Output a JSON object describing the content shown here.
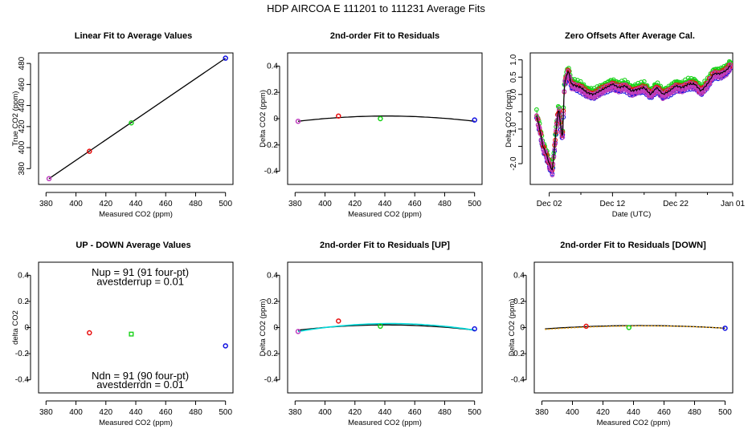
{
  "suptitle": "HDP   AIRCOA E   111201 to 111231   Average Fits",
  "colors": {
    "red": "#e81010",
    "green": "#18d218",
    "blue": "#1010e0",
    "magenta": "#c040c0",
    "cyan": "#00d8d8",
    "orange": "#f0a000",
    "black": "#000000"
  },
  "chart_data": [
    {
      "id": "p1",
      "type": "scatter",
      "title": "Linear Fit to Average Values",
      "xlabel": "Measured CO2 (ppm)",
      "ylabel": "True CO2 (ppm)",
      "xlim": [
        375,
        505
      ],
      "ylim": [
        365,
        490
      ],
      "xticks": [
        380,
        400,
        420,
        440,
        460,
        480,
        500
      ],
      "yticks": [
        380,
        400,
        420,
        440,
        460,
        480
      ],
      "ytick_rotate": true,
      "lines": [
        {
          "color": "black",
          "x": [
            382,
            500
          ],
          "y": [
            370.5,
            485.0
          ],
          "width": 1.3
        }
      ],
      "points": [
        {
          "x": 382,
          "y": 370.5,
          "color": "magenta"
        },
        {
          "x": 409,
          "y": 396.5,
          "color": "red"
        },
        {
          "x": 437,
          "y": 423.5,
          "color": "green"
        },
        {
          "x": 500,
          "y": 485.0,
          "color": "blue"
        }
      ]
    },
    {
      "id": "p2",
      "type": "scatter",
      "title": "2nd-order Fit to Residuals",
      "xlabel": "Measured CO2 (ppm)",
      "ylabel": "Delta CO2 (ppm)",
      "xlim": [
        375,
        505
      ],
      "ylim": [
        -0.5,
        0.5
      ],
      "xticks": [
        380,
        400,
        420,
        440,
        460,
        480,
        500
      ],
      "yticks": [
        -0.4,
        -0.2,
        0.0,
        0.2,
        0.4
      ],
      "ytick_rotate": false,
      "curves": [
        {
          "color": "black",
          "type": "quadratic",
          "x": [
            382,
            441,
            500
          ],
          "y": [
            -0.02,
            0.02,
            -0.02
          ],
          "width": 1.3
        }
      ],
      "points": [
        {
          "x": 382,
          "y": -0.02,
          "color": "magenta"
        },
        {
          "x": 409,
          "y": 0.02,
          "color": "red"
        },
        {
          "x": 437,
          "y": 0.0,
          "color": "green"
        },
        {
          "x": 500,
          "y": -0.01,
          "color": "blue"
        }
      ]
    },
    {
      "id": "p3",
      "type": "line",
      "title": "Zero Offsets After Average Cal.",
      "xlabel": "Date (UTC)",
      "ylabel": "Delta CO2 (ppm)",
      "xlim": [
        -1,
        31
      ],
      "ylim": [
        -2.6,
        1.2
      ],
      "xticks": [
        2,
        12,
        22,
        31
      ],
      "xtick_labels": [
        "Dec 02",
        "Dec 12",
        "Dec 22",
        "Jan 01"
      ],
      "xminor": [
        7,
        17,
        27
      ],
      "yticks": [
        -2.0,
        -1.5,
        -1.0,
        -0.5,
        0.0,
        0.5,
        1.0
      ],
      "yticklabels": [
        "-2.0",
        "",
        "-1.0",
        "",
        "0.0",
        "0.5",
        "1.0"
      ],
      "ytick_rotate": true,
      "keyframes": [
        [
          0,
          -0.6
        ],
        [
          0.5,
          -1.0
        ],
        [
          1.0,
          -1.5
        ],
        [
          1.5,
          -1.7
        ],
        [
          2.0,
          -2.0
        ],
        [
          2.5,
          -2.2
        ],
        [
          2.9,
          -1.4
        ],
        [
          3.2,
          -0.8
        ],
        [
          3.5,
          -0.4
        ],
        [
          3.8,
          -0.9
        ],
        [
          4.1,
          -1.3
        ],
        [
          4.4,
          0.3
        ],
        [
          5.0,
          0.7
        ],
        [
          5.5,
          0.3
        ],
        [
          7,
          0.2
        ],
        [
          8,
          0.05
        ],
        [
          9,
          0.0
        ],
        [
          10,
          0.1
        ],
        [
          11,
          0.2
        ],
        [
          12,
          0.3
        ],
        [
          13,
          0.2
        ],
        [
          14,
          0.25
        ],
        [
          15,
          0.1
        ],
        [
          16,
          0.15
        ],
        [
          17,
          0.2
        ],
        [
          18,
          0.0
        ],
        [
          19,
          0.2
        ],
        [
          20,
          0.0
        ],
        [
          21,
          0.1
        ],
        [
          22,
          0.25
        ],
        [
          23,
          0.2
        ],
        [
          24,
          0.3
        ],
        [
          25,
          0.3
        ],
        [
          26,
          0.1
        ],
        [
          27,
          0.3
        ],
        [
          28,
          0.6
        ],
        [
          29,
          0.6
        ],
        [
          30,
          0.7
        ],
        [
          30.7,
          0.85
        ]
      ],
      "series": [
        {
          "name": "blue",
          "color": "blue",
          "offset": -0.08,
          "amp": 0.05
        },
        {
          "name": "green",
          "color": "green",
          "offset": 0.1,
          "amp": 0.05
        },
        {
          "name": "red",
          "color": "red",
          "offset": 0.0,
          "amp": 0.05
        },
        {
          "name": "magenta",
          "color": "magenta",
          "offset": -0.05,
          "amp": 0.06
        },
        {
          "name": "mean",
          "color": "black",
          "offset": 0.0,
          "amp": 0.02,
          "line_only": true
        }
      ]
    },
    {
      "id": "p4",
      "type": "scatter",
      "title": "UP - DOWN Average Values",
      "xlabel": "Measured CO2 (ppm)",
      "ylabel": "delta CO2",
      "xlim": [
        375,
        505
      ],
      "ylim": [
        -0.5,
        0.5
      ],
      "xticks": [
        380,
        400,
        420,
        440,
        460,
        480,
        500
      ],
      "yticks": [
        -0.4,
        -0.2,
        0.0,
        0.2,
        0.4
      ],
      "ytick_rotate": false,
      "points": [
        {
          "x": 409,
          "y": -0.04,
          "color": "red"
        },
        {
          "x": 437,
          "y": -0.05,
          "color": "green",
          "marker": "square"
        },
        {
          "x": 500,
          "y": -0.14,
          "color": "blue"
        }
      ],
      "annotations": [
        {
          "text": "Nup = 91 (91 four-pt)",
          "x": 443,
          "y": 0.42
        },
        {
          "text": "avestderrup =  0.01",
          "x": 443,
          "y": 0.35
        },
        {
          "text": "Ndn = 91 (90 four-pt)",
          "x": 443,
          "y": -0.37
        },
        {
          "text": "avestderrdn =  0.01",
          "x": 443,
          "y": -0.44
        }
      ]
    },
    {
      "id": "p5",
      "type": "scatter",
      "title": "2nd-order Fit to Residuals [UP]",
      "xlabel": "Measured CO2 (ppm)",
      "ylabel": "Delta CO2 (ppm)",
      "xlim": [
        375,
        505
      ],
      "ylim": [
        -0.5,
        0.5
      ],
      "xticks": [
        380,
        400,
        420,
        440,
        460,
        480,
        500
      ],
      "yticks": [
        -0.4,
        -0.2,
        0.0,
        0.2,
        0.4
      ],
      "ytick_rotate": false,
      "curves": [
        {
          "color": "black",
          "type": "quadratic",
          "x": [
            382,
            441,
            500
          ],
          "y": [
            -0.02,
            0.02,
            -0.02
          ],
          "width": 1.3
        },
        {
          "color": "cyan",
          "type": "quadratic",
          "x": [
            382,
            445,
            500
          ],
          "y": [
            -0.03,
            0.03,
            -0.02
          ],
          "width": 1.6
        }
      ],
      "points": [
        {
          "x": 382,
          "y": -0.03,
          "color": "magenta"
        },
        {
          "x": 409,
          "y": 0.05,
          "color": "red"
        },
        {
          "x": 437,
          "y": 0.01,
          "color": "green"
        },
        {
          "x": 500,
          "y": -0.01,
          "color": "blue"
        }
      ]
    },
    {
      "id": "p6",
      "type": "scatter",
      "title": "2nd-order Fit to Residuals [DOWN]",
      "xlabel": "Measured CO2 (ppm)",
      "ylabel": "Delta CO2 (ppm)",
      "xlim": [
        375,
        505
      ],
      "ylim": [
        -0.5,
        0.5
      ],
      "xticks": [
        380,
        400,
        420,
        440,
        460,
        480,
        500
      ],
      "yticks": [
        -0.4,
        -0.2,
        0.0,
        0.2,
        0.4
      ],
      "ytick_rotate": false,
      "curves": [
        {
          "color": "black",
          "type": "quadratic",
          "x": [
            382,
            441,
            500
          ],
          "y": [
            -0.01,
            0.015,
            -0.005
          ],
          "width": 1.3
        },
        {
          "color": "orange",
          "type": "quadratic",
          "x": [
            382,
            441,
            500
          ],
          "y": [
            -0.015,
            0.012,
            -0.005
          ],
          "width": 1.3,
          "dotted": true
        }
      ],
      "points": [
        {
          "x": 409,
          "y": 0.01,
          "color": "red"
        },
        {
          "x": 437,
          "y": 0.0,
          "color": "green"
        },
        {
          "x": 500,
          "y": -0.005,
          "color": "blue"
        }
      ]
    }
  ]
}
